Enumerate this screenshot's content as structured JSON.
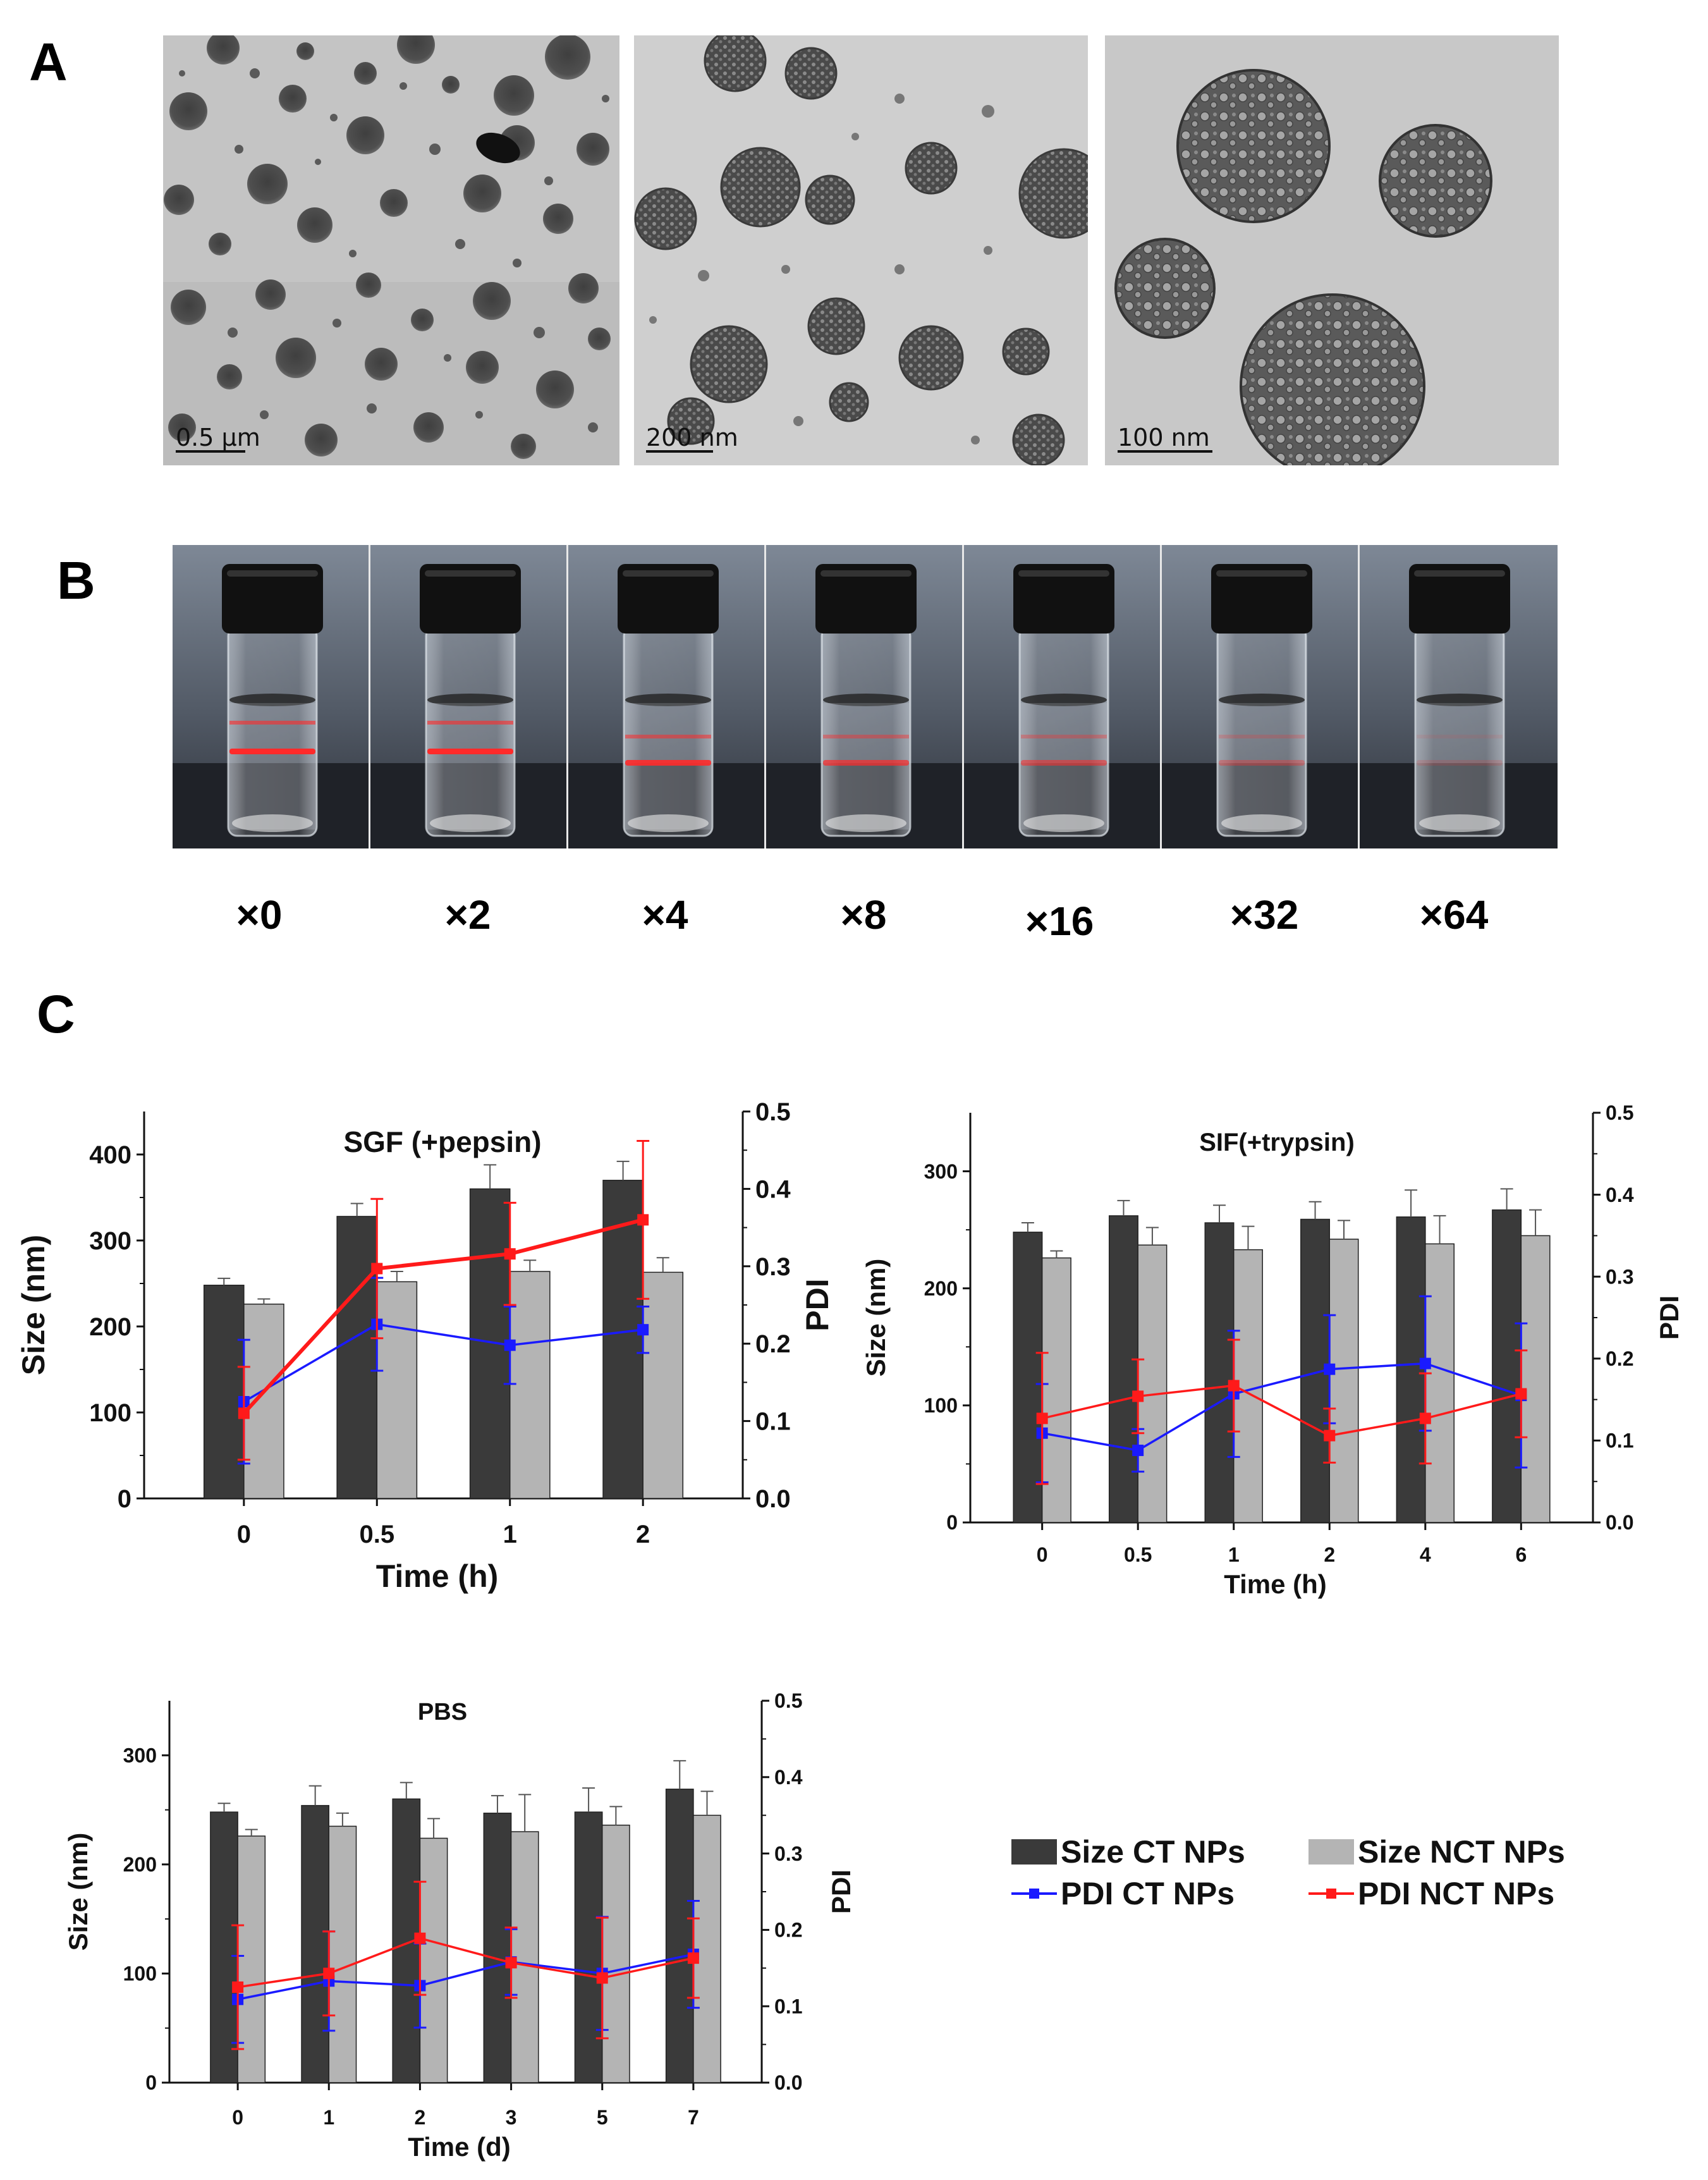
{
  "panel_a": {
    "letter": "A",
    "scale_bars": [
      "0.5 μm",
      "200 nm",
      "100 nm"
    ]
  },
  "panel_b": {
    "letter": "B",
    "dilutions": [
      "×0",
      "×2",
      "×4",
      "×8",
      "×16",
      "×32",
      "×64"
    ],
    "laser_intensity": [
      1.0,
      1.0,
      0.9,
      0.7,
      0.55,
      0.35,
      0.15
    ],
    "colors": {
      "laser": "#ff2a2a",
      "cap": "#111111",
      "background": "#59626e"
    }
  },
  "panel_c": {
    "letter": "C",
    "colors": {
      "size_ct": "#3a3a3a",
      "size_nct": "#b4b4b4",
      "pdi_ct": "#1a1aff",
      "pdi_nct": "#ff1a1a"
    }
  },
  "chart_data": [
    {
      "type": "bar",
      "title": "SGF (+pepsin)",
      "xlabel": "Time (h)",
      "ylabel": "Size (nm)",
      "y2label": "PDI",
      "categories": [
        "0",
        "0.5",
        "1",
        "2"
      ],
      "ylim": [
        0,
        450
      ],
      "y2lim": [
        0,
        0.5
      ],
      "yticks": [
        "0",
        "100",
        "200",
        "300",
        "400"
      ],
      "y2ticks": [
        "0.0",
        "0.1",
        "0.2",
        "0.3",
        "0.4",
        "0.5"
      ],
      "series": [
        {
          "name": "Size CT NPs",
          "axis": "left",
          "values": [
            248,
            328,
            360,
            370
          ],
          "errors": [
            8,
            15,
            28,
            22
          ]
        },
        {
          "name": "Size NCT NPs",
          "axis": "left",
          "values": [
            226,
            252,
            264,
            263
          ],
          "errors": [
            6,
            12,
            13,
            17
          ]
        },
        {
          "name": "PDI CT NPs",
          "axis": "right",
          "values": [
            0.125,
            0.225,
            0.198,
            0.218
          ],
          "errors": [
            0.08,
            0.06,
            0.05,
            0.03
          ]
        },
        {
          "name": "PDI NCT NPs",
          "axis": "right",
          "values": [
            0.11,
            0.297,
            0.316,
            0.36
          ],
          "errors": [
            0.06,
            0.09,
            0.066,
            0.102
          ]
        }
      ]
    },
    {
      "type": "bar",
      "title": "SIF(+trypsin)",
      "xlabel": "Time (h)",
      "ylabel": "Size (nm)",
      "y2label": "PDI",
      "categories": [
        "0",
        "0.5",
        "1",
        "2",
        "4",
        "6"
      ],
      "ylim": [
        0,
        350
      ],
      "y2lim": [
        0,
        0.5
      ],
      "yticks": [
        "0",
        "100",
        "200",
        "300"
      ],
      "y2ticks": [
        "0.0",
        "0.1",
        "0.2",
        "0.3",
        "0.4",
        "0.5"
      ],
      "series": [
        {
          "name": "Size CT NPs",
          "axis": "left",
          "values": [
            248,
            262,
            256,
            259,
            261,
            267
          ],
          "errors": [
            8,
            13,
            15,
            15,
            23,
            18
          ]
        },
        {
          "name": "Size NCT NPs",
          "axis": "left",
          "values": [
            226,
            237,
            233,
            242,
            238,
            245
          ],
          "errors": [
            6,
            15,
            20,
            16,
            24,
            22
          ]
        },
        {
          "name": "PDI CT NPs",
          "axis": "right",
          "values": [
            0.109,
            0.088,
            0.157,
            0.187,
            0.194,
            0.155
          ],
          "errors": [
            0.06,
            0.026,
            0.077,
            0.066,
            0.082,
            0.088
          ]
        },
        {
          "name": "PDI NCT NPs",
          "axis": "right",
          "values": [
            0.127,
            0.154,
            0.167,
            0.106,
            0.127,
            0.157
          ],
          "errors": [
            0.08,
            0.045,
            0.056,
            0.033,
            0.055,
            0.053
          ]
        }
      ]
    },
    {
      "type": "bar",
      "title": "PBS",
      "xlabel": "Time (d)",
      "ylabel": "Size (nm)",
      "y2label": "PDI",
      "categories": [
        "0",
        "1",
        "2",
        "3",
        "5",
        "7"
      ],
      "ylim": [
        0,
        350
      ],
      "y2lim": [
        0,
        0.5
      ],
      "yticks": [
        "0",
        "100",
        "200",
        "300"
      ],
      "y2ticks": [
        "0.0",
        "0.1",
        "0.2",
        "0.3",
        "0.4",
        "0.5"
      ],
      "series": [
        {
          "name": "Size CT NPs",
          "axis": "left",
          "values": [
            248,
            254,
            260,
            247,
            248,
            269
          ],
          "errors": [
            8,
            18,
            15,
            16,
            22,
            26
          ]
        },
        {
          "name": "Size NCT NPs",
          "axis": "left",
          "values": [
            226,
            235,
            224,
            230,
            236,
            245
          ],
          "errors": [
            6,
            12,
            18,
            34,
            17,
            22
          ]
        },
        {
          "name": "PDI CT NPs",
          "axis": "right",
          "values": [
            0.109,
            0.133,
            0.127,
            0.158,
            0.143,
            0.168
          ],
          "errors": [
            0.057,
            0.065,
            0.055,
            0.043,
            0.074,
            0.07
          ]
        },
        {
          "name": "PDI NCT NPs",
          "axis": "right",
          "values": [
            0.125,
            0.143,
            0.189,
            0.157,
            0.137,
            0.163
          ],
          "errors": [
            0.081,
            0.055,
            0.074,
            0.046,
            0.079,
            0.052
          ]
        }
      ]
    }
  ],
  "legend": {
    "size_ct": "Size CT NPs",
    "size_nct": "Size NCT NPs",
    "pdi_ct": "PDI CT NPs",
    "pdi_nct": "PDI NCT NPs"
  }
}
